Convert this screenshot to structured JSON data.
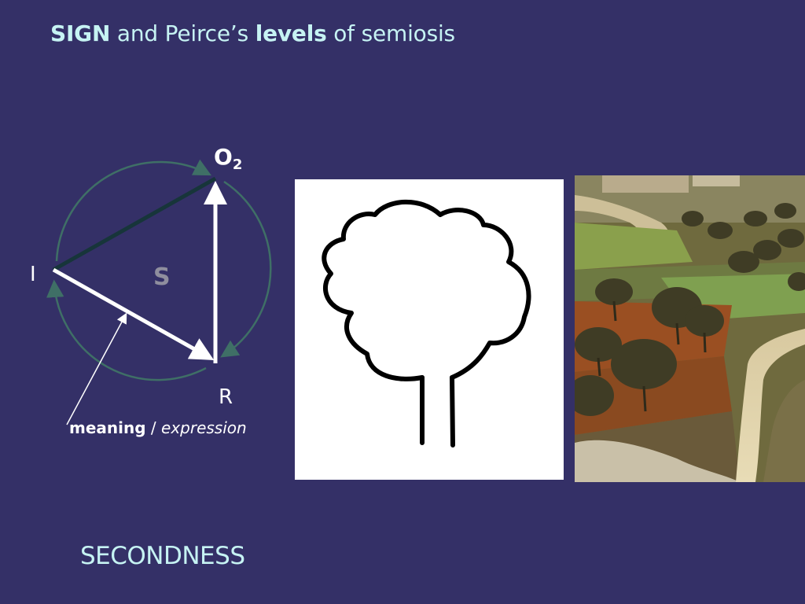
{
  "title": {
    "part1": "SIGN",
    "part2": " and Peirce’s ",
    "part3": "levels",
    "part4": " of semiosis"
  },
  "diagram": {
    "vertex_object": "O",
    "vertex_object_subscript": "2",
    "vertex_interpretant": "I",
    "vertex_representamen": "R",
    "center_label": "S",
    "caption_bold": "meaning",
    "caption_sep": " / ",
    "caption_italic": "expression"
  },
  "bottom_label": "SECONDNESS",
  "colors": {
    "background": "#343067",
    "title": "#c6f3f3",
    "circle_arrows": "#3f6f66",
    "edge_dark": "#17353a",
    "edge_light": "#ffffff",
    "center_label": "#8f8e9e"
  }
}
